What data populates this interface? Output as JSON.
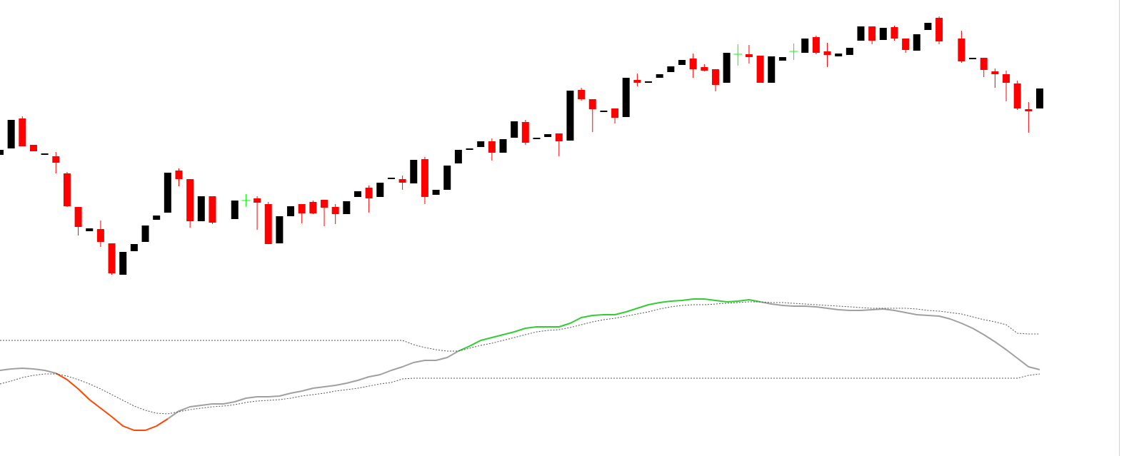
{
  "chart_data": [
    {
      "type": "candlestick",
      "up_color": "#000000",
      "down_color": "#ff0000",
      "doji_color": "#00ff00",
      "ylim": [
        0,
        400
      ],
      "open": [
        183,
        192,
        234,
        197,
        183,
        181,
        157,
        110,
        76,
        79,
        59,
        15,
        48,
        61,
        92,
        102,
        161,
        149,
        90,
        125,
        null,
        93,
        119,
        122,
        114,
        59,
        97,
        114,
        117,
        120,
        110,
        100,
        124,
        137,
        124,
        149,
        149,
        143,
        177,
        127,
        134,
        171,
        190,
        194,
        202,
        186,
        207,
        229,
        205,
        208,
        213,
        203,
        274,
        261,
        243,
        248,
        236,
        288,
        284,
        291,
        299,
        309,
        318,
        306,
        303,
        284,
        324,
        324,
        322,
        284,
        315,
        328,
        326,
        348,
        328,
        321,
        323,
        343,
        363,
        344,
        362,
        346,
        329,
        358,
        375,
        null,
        346,
        317,
        319,
        300,
        296,
        283,
        247,
        248
      ],
      "high": [
        190,
        232,
        237,
        197,
        185,
        187,
        159,
        110,
        80,
        91,
        59,
        47,
        58,
        84,
        98,
        158,
        164,
        149,
        125,
        125,
        null,
        119,
        128,
        125,
        117,
        97,
        111,
        114,
        119,
        120,
        114,
        118,
        132,
        140,
        144,
        151,
        154,
        176,
        180,
        134,
        168,
        190,
        192,
        202,
        206,
        205,
        230,
        232,
        207,
        212,
        213,
        273,
        277,
        261,
        245,
        248,
        291,
        297,
        286,
        296,
        307,
        316,
        325,
        310,
        303,
        326,
        338,
        337,
        322,
        321,
        320,
        339,
        346,
        350,
        340,
        325,
        333,
        363,
        363,
        361,
        364,
        346,
        352,
        368,
        377,
        null,
        357,
        319,
        319,
        304,
        301,
        287,
        257,
        276
      ],
      "low": [
        183,
        192,
        195,
        188,
        183,
        157,
        110,
        70,
        76,
        54,
        15,
        15,
        48,
        61,
        92,
        102,
        139,
        81,
        90,
        86,
        null,
        93,
        110,
        78,
        58,
        59,
        97,
        87,
        100,
        83,
        86,
        100,
        124,
        102,
        124,
        149,
        134,
        143,
        114,
        127,
        134,
        171,
        190,
        194,
        175,
        186,
        207,
        197,
        205,
        208,
        181,
        203,
        259,
        215,
        243,
        227,
        236,
        279,
        284,
        291,
        299,
        309,
        291,
        300,
        272,
        284,
        308,
        311,
        284,
        284,
        315,
        316,
        326,
        324,
        306,
        321,
        323,
        343,
        338,
        344,
        343,
        326,
        329,
        358,
        338,
        null,
        312,
        317,
        292,
        277,
        258,
        246,
        214,
        248
      ],
      "close": [
        190,
        232,
        195,
        188,
        185,
        172,
        111,
        82,
        80,
        61,
        17,
        47,
        58,
        84,
        98,
        158,
        149,
        90,
        125,
        88,
        null,
        119,
        119,
        116,
        58,
        97,
        111,
        101,
        101,
        109,
        100,
        118,
        132,
        122,
        144,
        151,
        144,
        176,
        124,
        134,
        168,
        190,
        192,
        202,
        186,
        205,
        230,
        200,
        207,
        212,
        202,
        273,
        261,
        247,
        245,
        235,
        291,
        284,
        286,
        296,
        307,
        316,
        303,
        301,
        281,
        326,
        324,
        320,
        284,
        321,
        320,
        328,
        346,
        326,
        323,
        325,
        333,
        363,
        343,
        361,
        346,
        330,
        352,
        368,
        342,
        null,
        314,
        319,
        302,
        296,
        284,
        248,
        244,
        276
      ]
    },
    {
      "type": "line",
      "ylim": [
        0,
        239
      ],
      "series": [
        {
          "color": "#a0a0a0",
          "style": "solid",
          "values": [
            120,
            122,
            123,
            122,
            120,
            116,
            null,
            null,
            null,
            null,
            null,
            null,
            null,
            null,
            null,
            52,
            63,
            69,
            71,
            73,
            73,
            76,
            81,
            83,
            83,
            84,
            88,
            91,
            95,
            97,
            99,
            102,
            106,
            111,
            114,
            120,
            125,
            131,
            134,
            134,
            138,
            147,
            null,
            null,
            null,
            null,
            null,
            null,
            null,
            null,
            null,
            null,
            null,
            null,
            null,
            null,
            null,
            null,
            null,
            null,
            null,
            null,
            null,
            null,
            null,
            null,
            null,
            null,
            216,
            213,
            211,
            210,
            210,
            209,
            207,
            205,
            204,
            204,
            205,
            206,
            204,
            201,
            198,
            197,
            196,
            192,
            186,
            179,
            170,
            160,
            149,
            137,
            125,
            121
          ]
        },
        {
          "color": "#ff4500",
          "style": "solid",
          "values": [
            null,
            null,
            null,
            null,
            null,
            116,
            107,
            94,
            79,
            67,
            55,
            42,
            36,
            36,
            42,
            52,
            null,
            null,
            null,
            null,
            null,
            null,
            null,
            null,
            null,
            null,
            null,
            null,
            null,
            null,
            null,
            null,
            null,
            null,
            null,
            null,
            null,
            null,
            null,
            null,
            null,
            null,
            null,
            null,
            null,
            null,
            null,
            null,
            null,
            null,
            null,
            null,
            null,
            null,
            null,
            null,
            null,
            null,
            null,
            null,
            null,
            null,
            null,
            null,
            null,
            null,
            null,
            null,
            null,
            null,
            null,
            null,
            null,
            null,
            null,
            null,
            null,
            null,
            null,
            null,
            null,
            null,
            null,
            null,
            null,
            null,
            null,
            null,
            null,
            null,
            null,
            null,
            null,
            null
          ]
        },
        {
          "color": "#32cd32",
          "style": "solid",
          "values": [
            null,
            null,
            null,
            null,
            null,
            null,
            null,
            null,
            null,
            null,
            null,
            null,
            null,
            null,
            null,
            null,
            null,
            null,
            null,
            null,
            null,
            null,
            null,
            null,
            null,
            null,
            null,
            null,
            null,
            null,
            null,
            null,
            null,
            null,
            null,
            null,
            null,
            null,
            null,
            null,
            null,
            147,
            154,
            162,
            166,
            170,
            174,
            179,
            181,
            181,
            181,
            186,
            194,
            197,
            198,
            198,
            202,
            207,
            212,
            215,
            217,
            218,
            220,
            220,
            218,
            216,
            217,
            219,
            216,
            null,
            null,
            null,
            null,
            null,
            null,
            null,
            null,
            null,
            null,
            null,
            null,
            null,
            null,
            null,
            null,
            null,
            null,
            null,
            null,
            null,
            null,
            null,
            null,
            null
          ]
        },
        {
          "color": "#555555",
          "style": "dotted",
          "values": [
            162,
            162,
            162,
            162,
            162,
            162,
            162,
            162,
            162,
            162,
            162,
            162,
            162,
            162,
            162,
            162,
            162,
            162,
            162,
            162,
            162,
            162,
            162,
            162,
            162,
            162,
            162,
            162,
            162,
            162,
            162,
            162,
            162,
            162,
            162,
            162,
            162,
            156,
            152,
            149,
            147,
            147,
            151,
            155,
            158,
            162,
            166,
            170,
            174,
            176,
            177,
            180,
            184,
            188,
            191,
            193,
            196,
            199,
            202,
            206,
            209,
            211,
            212,
            212,
            213,
            214,
            215,
            216,
            216,
            215,
            215,
            214,
            213,
            212,
            211,
            210,
            209,
            208,
            207,
            207,
            207,
            207,
            206,
            204,
            203,
            201,
            199,
            195,
            191,
            188,
            184,
            172,
            171,
            171
          ]
        },
        {
          "color": "#555555",
          "style": "dotted",
          "values": [
            101,
            105,
            110,
            113,
            115,
            115,
            112,
            107,
            101,
            94,
            86,
            78,
            70,
            64,
            60,
            59,
            62,
            65,
            67,
            69,
            70,
            72,
            75,
            77,
            78,
            79,
            81,
            84,
            86,
            88,
            91,
            93,
            95,
            98,
            101,
            103,
            108,
            109,
            109,
            109,
            109,
            109,
            109,
            109,
            109,
            109,
            109,
            109,
            109,
            109,
            109,
            109,
            109,
            109,
            109,
            109,
            109,
            109,
            109,
            109,
            109,
            109,
            109,
            109,
            109,
            109,
            109,
            109,
            109,
            109,
            109,
            109,
            109,
            109,
            109,
            109,
            109,
            109,
            109,
            109,
            109,
            109,
            109,
            109,
            109,
            109,
            109,
            109,
            109,
            109,
            109,
            109,
            113,
            115
          ]
        }
      ]
    }
  ]
}
